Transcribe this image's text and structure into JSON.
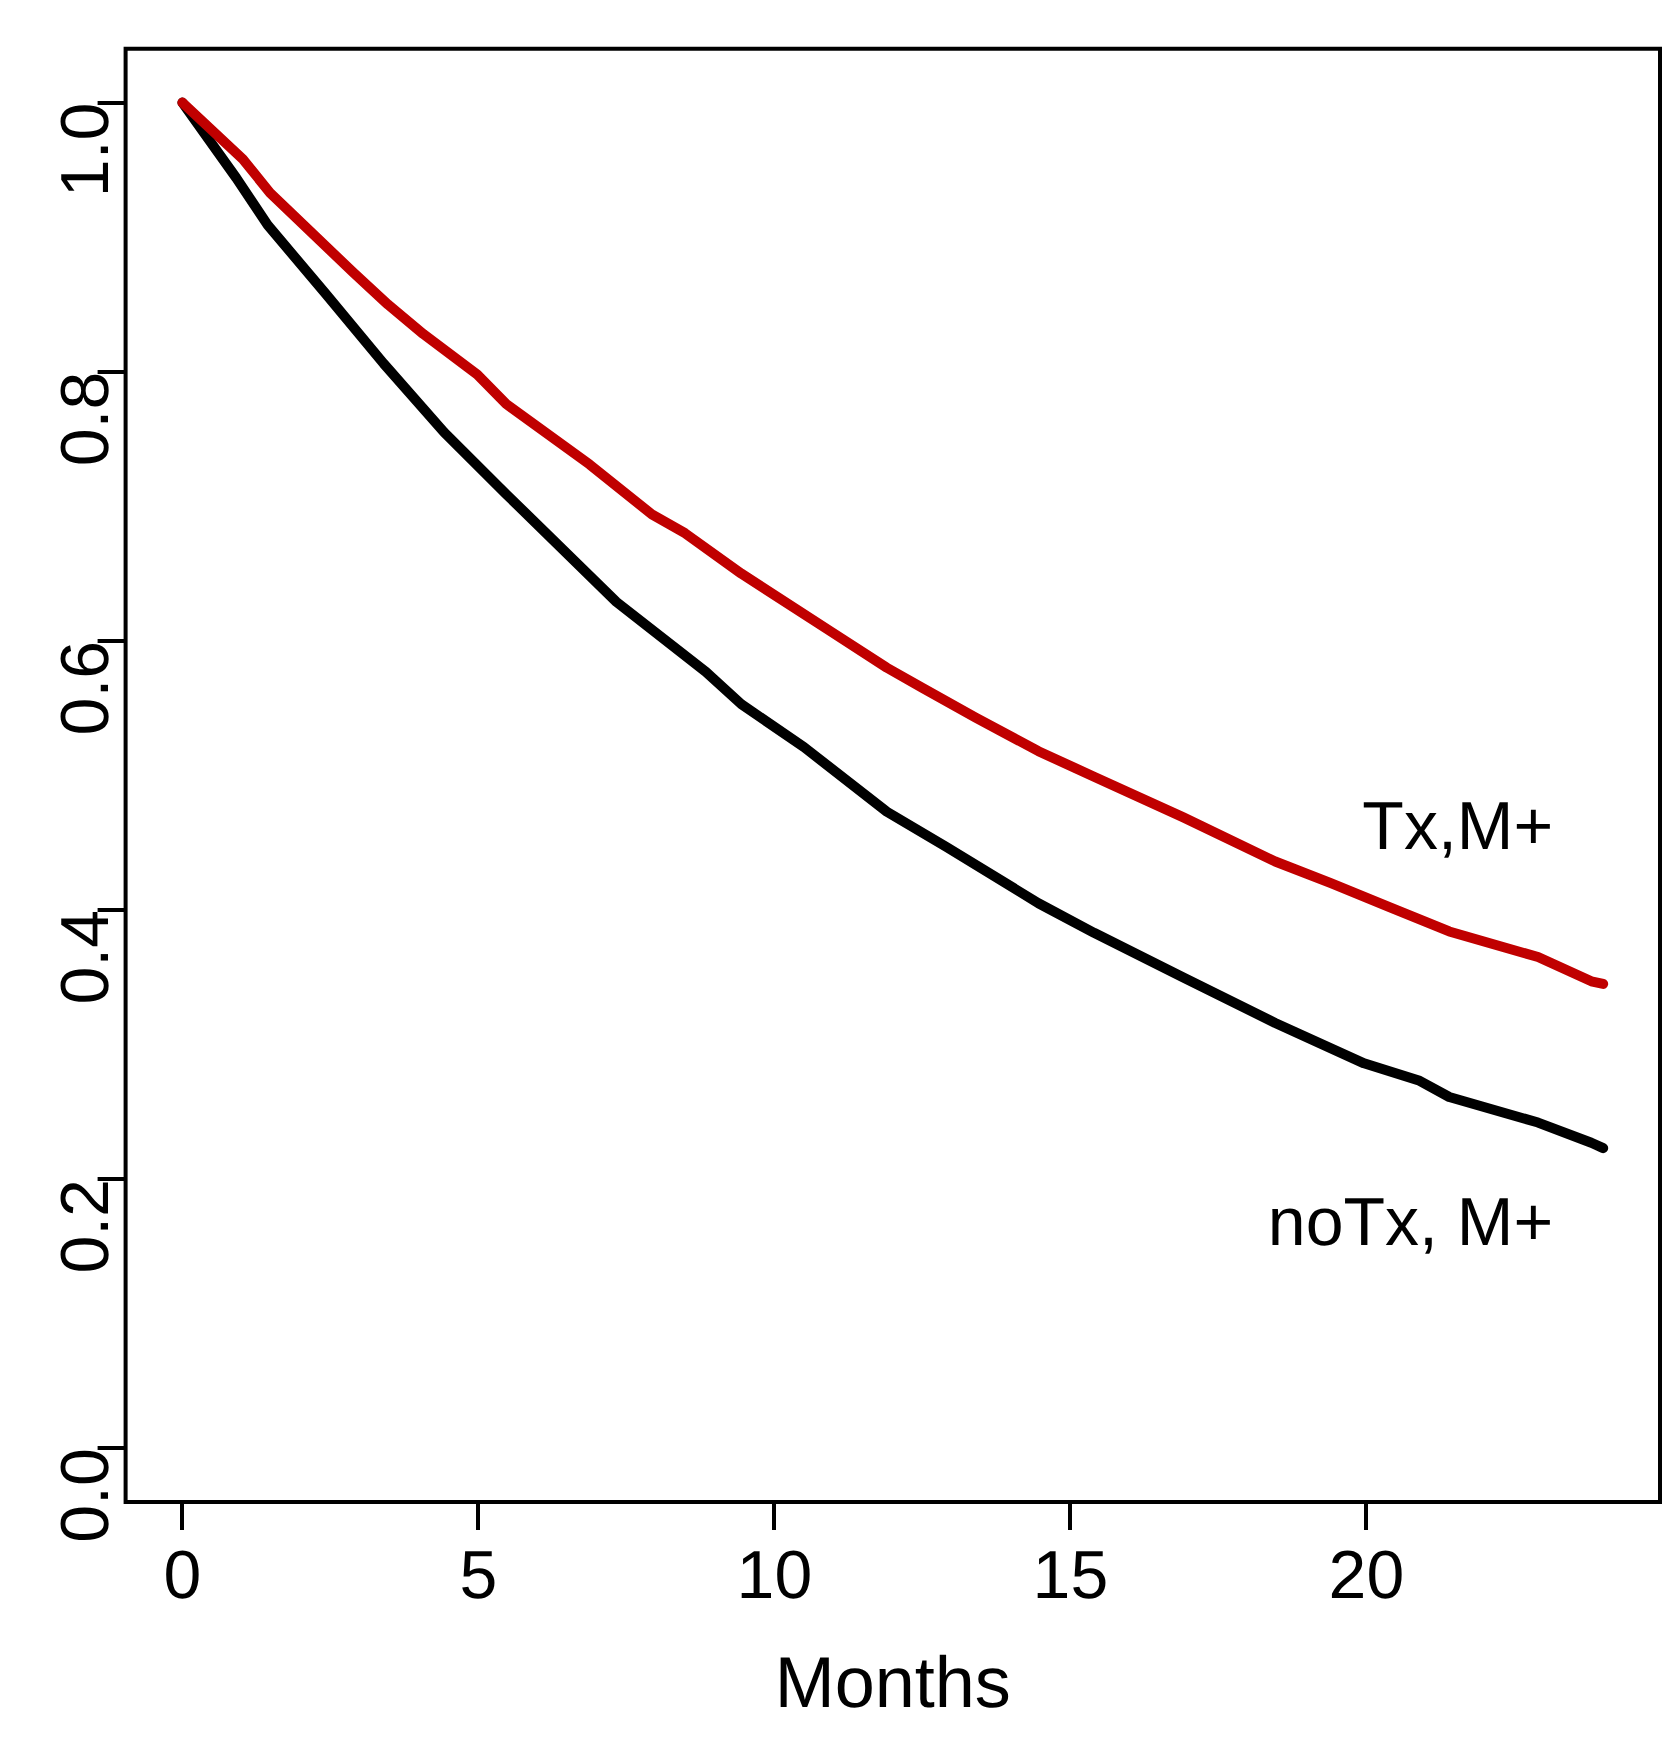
{
  "chart_data": {
    "type": "line",
    "xlabel": "Months",
    "xlim": [
      -0.96,
      24.96
    ],
    "xticks": [
      0,
      5,
      10,
      15,
      20
    ],
    "ylim": [
      -0.04,
      1.04
    ],
    "yticks": [
      {
        "value": 0,
        "label": "0.0"
      },
      0.2,
      0.4,
      0.6,
      0.8,
      {
        "value": 1,
        "label": "1.0"
      }
    ],
    "grid": false,
    "legend": false,
    "marker": "none",
    "line_style": "solid",
    "series": [
      {
        "name": "Tx,M+",
        "color": "#c00000",
        "x": [
          0,
          1.02,
          1.48,
          2.88,
          3.47,
          4.07,
          4.98,
          5.47,
          6.88,
          7.93,
          8.49,
          9.44,
          10.95,
          11.9,
          12.5,
          13.4,
          14.46,
          15.4,
          16.9,
          18.46,
          19.4,
          20.4,
          21.4,
          22.9,
          23.8,
          24
        ],
        "values": [
          1,
          0.958,
          0.933,
          0.874,
          0.85,
          0.828,
          0.798,
          0.776,
          0.731,
          0.694,
          0.68,
          0.65,
          0.607,
          0.58,
          0.565,
          0.543,
          0.518,
          0.499,
          0.469,
          0.436,
          0.42,
          0.402,
          0.384,
          0.365,
          0.347,
          0.345
        ]
      },
      {
        "name": "noTx, M+",
        "color": "#000000",
        "x": [
          0,
          0.91,
          1.44,
          2.42,
          3.4,
          4.42,
          5.47,
          7.33,
          8.84,
          9.44,
          10.5,
          11.9,
          12.9,
          14.46,
          15.4,
          16.9,
          18.46,
          19.96,
          20.9,
          21.4,
          22.9,
          23.8,
          24
        ],
        "values": [
          1,
          0.944,
          0.909,
          0.858,
          0.806,
          0.755,
          0.709,
          0.629,
          0.577,
          0.553,
          0.521,
          0.473,
          0.447,
          0.405,
          0.383,
          0.35,
          0.316,
          0.286,
          0.273,
          0.261,
          0.242,
          0.227,
          0.223
        ]
      }
    ]
  }
}
